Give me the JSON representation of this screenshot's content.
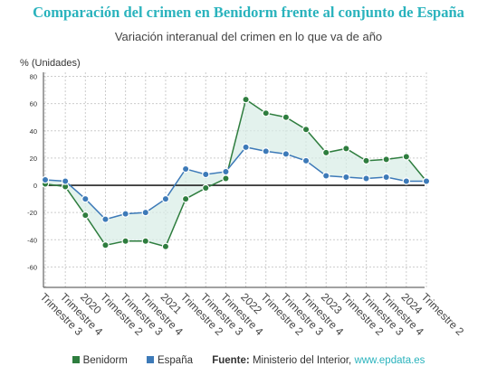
{
  "title": "Comparación del crimen en Benidorm frente al conjunto de España",
  "subtitle": "Variación interanual del crimen en lo que va de año",
  "colors": {
    "benidorm": "#2e7d3e",
    "espana": "#3d7ab8",
    "accent": "#2ab3bd"
  },
  "chart_data": {
    "type": "line",
    "ylabel": "% (Unidades)",
    "ylim": [
      -75,
      83
    ],
    "yticks": [
      80,
      60,
      40,
      20,
      0,
      -20,
      -40,
      -60
    ],
    "grid": true,
    "legend_position": "bottom",
    "categories": [
      "Trimestre 3",
      "Trimestre 4",
      "2020",
      "Trimestre 2",
      "Trimestre 3",
      "Trimestre 4",
      "2021",
      "Trimestre 2",
      "Trimestre 3",
      "Trimestre 4",
      "2022",
      "Trimestre 2",
      "Trimestre 3",
      "Trimestre 4",
      "2023",
      "Trimestre 2",
      "Trimestre 3",
      "Trimestre 4",
      "2024",
      "Trimestre 2"
    ],
    "series": [
      {
        "name": "Benidorm",
        "values": [
          1,
          -1,
          -22,
          -44,
          -41,
          -41,
          -45,
          -10,
          -2,
          5,
          63,
          53,
          50,
          41,
          24,
          27,
          18,
          19,
          21,
          3
        ]
      },
      {
        "name": "España",
        "values": [
          4,
          3,
          -10,
          -25,
          -21,
          -20,
          -10,
          12,
          8,
          10,
          28,
          25,
          23,
          18,
          7,
          6,
          5,
          6,
          3,
          3
        ]
      }
    ]
  },
  "footer": {
    "source_label": "Fuente:",
    "source_text": "Ministerio del Interior,",
    "source_link": "www.epdata.es"
  }
}
